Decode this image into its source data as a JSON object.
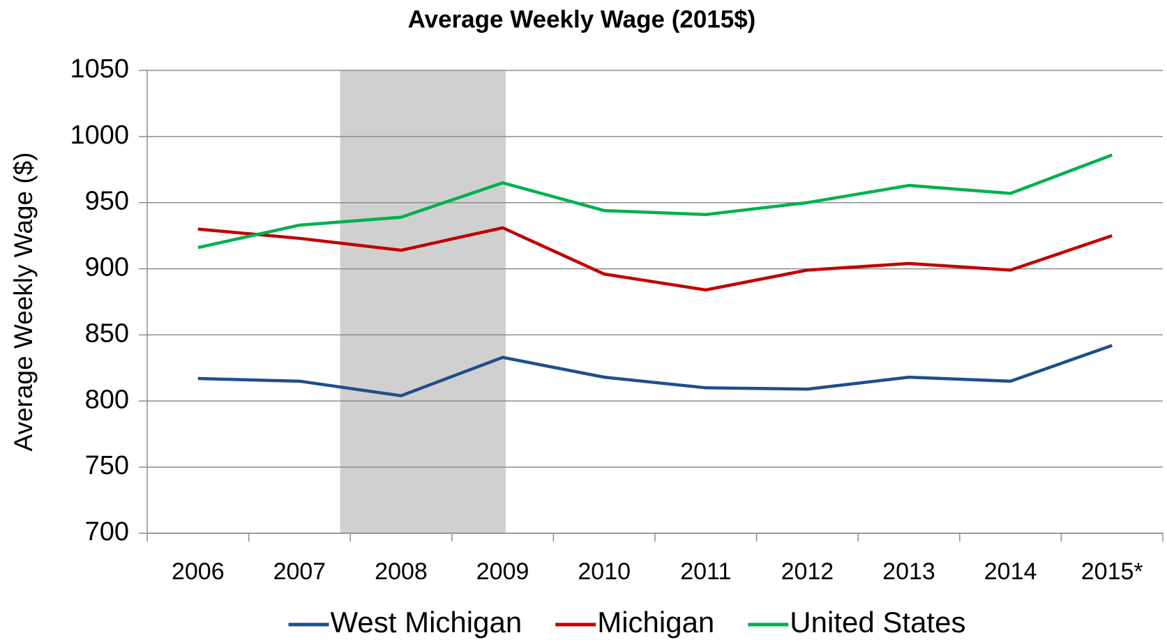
{
  "chart_data": {
    "type": "line",
    "title": "Average Weekly Wage (2015$)",
    "y_label": "Average Weekly Wage ($)",
    "categories": [
      "2006",
      "2007",
      "2008",
      "2009",
      "2010",
      "2011",
      "2012",
      "2013",
      "2014",
      "2015*"
    ],
    "series": [
      {
        "name": "West Michigan",
        "color": "#1f4e8c",
        "values": [
          817,
          815,
          804,
          833,
          818,
          810,
          809,
          818,
          815,
          842
        ]
      },
      {
        "name": "Michigan",
        "color": "#c00000",
        "values": [
          930,
          923,
          914,
          931,
          896,
          884,
          899,
          904,
          899,
          925
        ]
      },
      {
        "name": "United States",
        "color": "#00b050",
        "values": [
          916,
          933,
          939,
          965,
          944,
          941,
          950,
          963,
          957,
          986
        ]
      }
    ],
    "ylim": [
      700,
      1050
    ],
    "yticks": [
      700,
      750,
      800,
      850,
      900,
      950,
      1000,
      1050
    ],
    "grid": true,
    "legend": "bottom"
  }
}
